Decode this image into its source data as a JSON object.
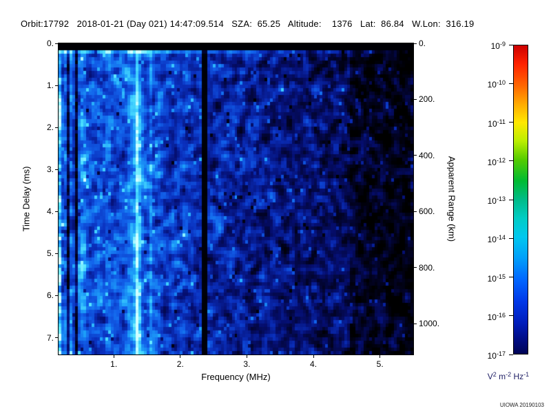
{
  "header": {
    "orbit": "17792",
    "date": "2018-01-21",
    "day": "021",
    "time": "14:47:09.514",
    "sza": "65.25",
    "altitude": "1376",
    "lat": "86.84",
    "w_lon": "316.19",
    "parts": [
      "Orbit:17792",
      "2018-01-21 (Day 021) 14:47:09.514",
      "SZA:  65.25",
      "Altitude:    1376",
      "Lat:  86.84",
      "W.Lon:  316.19"
    ],
    "separator": "   "
  },
  "watermark": "UIOWA 20190103",
  "chart_data": {
    "type": "heatmap",
    "title": "Orbit:17792  2018-01-21 (Day 021) 14:47:09.514  SZA: 65.25  Altitude: 1376  Lat: 86.84  W.Lon: 316.19",
    "xlabel": "Frequency (MHz)",
    "x_range": [
      0.17,
      5.5
    ],
    "x_ticks": [
      "1.",
      "2.",
      "3.",
      "4.",
      "5."
    ],
    "x_tick_values": [
      1,
      2,
      3,
      4,
      5
    ],
    "ylabel": "Time Delay (ms)",
    "y_range": [
      0,
      7.4
    ],
    "y_ticks": [
      "0.",
      "1.",
      "2.",
      "3.",
      "4.",
      "5.",
      "6.",
      "7."
    ],
    "y_tick_values": [
      0,
      1,
      2,
      3,
      4,
      5,
      6,
      7
    ],
    "y2label": "Apparent Range (km)",
    "y2_ticks": [
      "0.",
      "200.",
      "400.",
      "600.",
      "800.",
      "1000."
    ],
    "y2_tick_values": [
      0,
      200,
      400,
      600,
      800,
      1000
    ],
    "y2_km_per_ms": 150,
    "grid": false,
    "colorbar": {
      "scale": "log",
      "tick_exponents": [
        "-9",
        "-10",
        "-11",
        "-12",
        "-13",
        "-14",
        "-15",
        "-16",
        "-17"
      ],
      "tick_base": "10",
      "min": 1e-17,
      "max": 1e-09,
      "unit_parts": [
        [
          "V",
          "2"
        ],
        [
          "m",
          "-2"
        ],
        [
          "Hz",
          "-1"
        ]
      ],
      "gradient": [
        "#cc0000 0%",
        "#ff2200 6%",
        "#ff6600 13%",
        "#ffaa00 19%",
        "#ffe800 25%",
        "#bbee00 31%",
        "#55cc00 37%",
        "#00bb33 44%",
        "#00bb88 50%",
        "#00ccc4 56%",
        "#00c8ee 62%",
        "#009ffa 69%",
        "#0066ff 76%",
        "#0038e8 83%",
        "#001dbb 90%",
        "#000d88 95%",
        "#000455 100%"
      ]
    },
    "image_colormap": [
      [
        0.0,
        0,
        0,
        0
      ],
      [
        0.14,
        2,
        3,
        38
      ],
      [
        0.3,
        5,
        14,
        112
      ],
      [
        0.46,
        10,
        48,
        190
      ],
      [
        0.6,
        18,
        98,
        235
      ],
      [
        0.74,
        30,
        162,
        250
      ],
      [
        0.87,
        80,
        228,
        255
      ],
      [
        1.0,
        210,
        255,
        255
      ]
    ],
    "features": {
      "description": "Noisy blue radar spectrogram: brightest below ~2 MHz, fading to near-black above ~4.6 MHz; black band at zero delay with bright surface line beneath it.",
      "base_intensity": {
        "at_0MHz": 0.62,
        "slope_per_MHz": -0.082,
        "bump_1_to_1p9MHz": 0.04,
        "drop_above_4p55MHz": 0.1
      },
      "bright_lines": [
        {
          "freq": 0.19,
          "sigma": 0.025,
          "amp": 0.3
        },
        {
          "freq": 1.355,
          "sigma": 0.04,
          "amp": 0.32
        },
        {
          "freq": 1.3,
          "sigma": 0.12,
          "amp": 0.1
        },
        {
          "freq": 1.55,
          "sigma": 0.02,
          "amp": 0.12
        },
        {
          "freq": 0.55,
          "sigma": 0.06,
          "amp": 0.08
        }
      ],
      "dark_lines": [
        {
          "freq": 0.31,
          "sigma": 0.018,
          "amp": 0.45
        },
        {
          "freq": 0.44,
          "sigma": 0.015,
          "amp": 0.35
        }
      ],
      "blackout_line": {
        "freq": 2.365,
        "halfwidth": 0.04
      },
      "top_black_ms": 0.16,
      "surface_line_ms_extent": 0.12,
      "surface_line_amp": 0.3
    },
    "noise": {
      "seed": 20190103,
      "cols": 129,
      "rows": 90,
      "amp": 0.85,
      "col_streak_amp": 0.35,
      "speckle_bright_prob": 0.028,
      "speckle_dark_prob": 0.01
    },
    "legend_position": "right-colorbar"
  }
}
